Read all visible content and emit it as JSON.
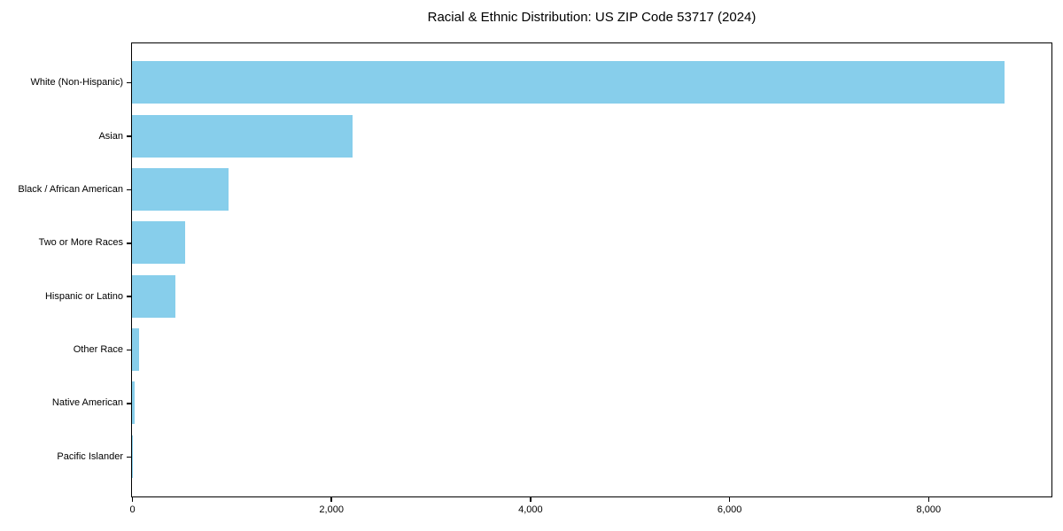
{
  "chart_data": {
    "type": "bar",
    "orientation": "horizontal",
    "title": "Racial & Ethnic Distribution: US ZIP Code 53717 (2024)",
    "categories": [
      "White (Non-Hispanic)",
      "Asian",
      "Black / African American",
      "Two or More Races",
      "Hispanic or Latino",
      "Other Race",
      "Native American",
      "Pacific Islander"
    ],
    "values": [
      8770,
      2220,
      970,
      535,
      435,
      70,
      25,
      4
    ],
    "xlabel": "",
    "ylabel": "",
    "xlim": [
      0,
      9230
    ],
    "x_ticks": [
      {
        "value": 0,
        "label": "0"
      },
      {
        "value": 2000,
        "label": "2,000"
      },
      {
        "value": 4000,
        "label": "4,000"
      },
      {
        "value": 6000,
        "label": "6,000"
      },
      {
        "value": 8000,
        "label": "8,000"
      }
    ],
    "grid": false,
    "legend": false,
    "bar_color": "#87CEEB",
    "axis_color": "#000000",
    "background_color": "#ffffff"
  }
}
